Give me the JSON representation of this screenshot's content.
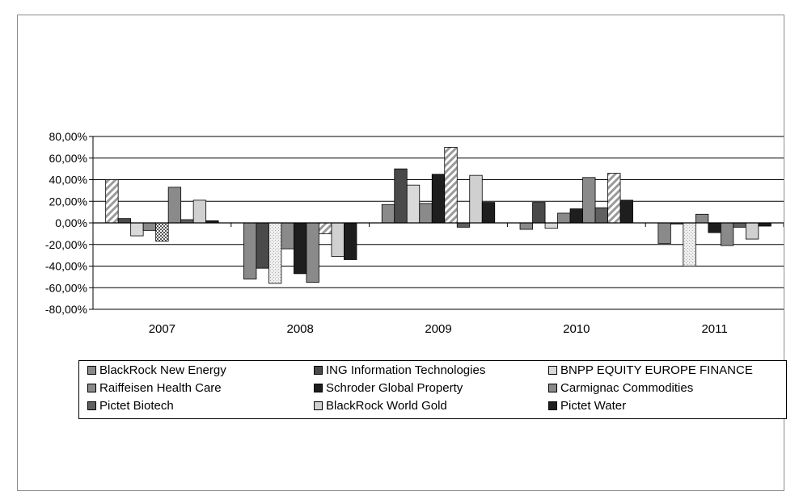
{
  "chart_data": {
    "type": "bar",
    "title": "",
    "xlabel": "",
    "ylabel": "",
    "categories": [
      "2007",
      "2008",
      "2009",
      "2010",
      "2011"
    ],
    "ylim": [
      -80,
      80
    ],
    "y_tick_labels": [
      "80,00%",
      "60,00%",
      "40,00%",
      "20,00%",
      "0,00%",
      "-20,00%",
      "-40,00%",
      "-60,00%",
      "-80,00%"
    ],
    "y_tick_values": [
      80,
      60,
      40,
      20,
      0,
      -20,
      -40,
      -60,
      -80
    ],
    "grid": "horizontal",
    "legend_position": "bottom",
    "series": [
      {
        "name": "BlackRock New Energy",
        "color": "#8a8a8a",
        "pattern": "solid",
        "values": [
          40,
          -52,
          17,
          -6,
          -19
        ]
      },
      {
        "name": "ING Information Technologies",
        "color": "#4a4a4a",
        "pattern": "solid",
        "values": [
          4,
          -42,
          50,
          19,
          -1
        ]
      },
      {
        "name": "BNPP EQUITY EUROPE FINANCE",
        "color": "#d9d9d9",
        "pattern": "solid",
        "values": [
          -12,
          -56,
          35,
          -5,
          -40
        ]
      },
      {
        "name": "Raiffeisen Health Care",
        "color": "#8a8a8a",
        "pattern": "solid",
        "values": [
          -7,
          -24,
          18,
          9,
          8
        ]
      },
      {
        "name": "Schroder Global Property",
        "color": "#1e1e1e",
        "pattern": "solid",
        "values": [
          -17,
          -47,
          45,
          13,
          -9
        ]
      },
      {
        "name": "Carmignac Commodities",
        "color": "#8a8a8a",
        "pattern": "solid",
        "values": [
          33,
          -55,
          70,
          42,
          -21
        ]
      },
      {
        "name": "Pictet Biotech",
        "color": "#606060",
        "pattern": "solid",
        "values": [
          3,
          -10,
          -4,
          14,
          -4
        ]
      },
      {
        "name": "BlackRock World Gold",
        "color": "#d0d0d0",
        "pattern": "solid",
        "values": [
          21,
          -31,
          44,
          46,
          -15
        ]
      },
      {
        "name": "Pictet Water",
        "color": "#1e1e1e",
        "pattern": "solid",
        "values": [
          2,
          -34,
          19,
          21,
          -3
        ]
      }
    ]
  }
}
